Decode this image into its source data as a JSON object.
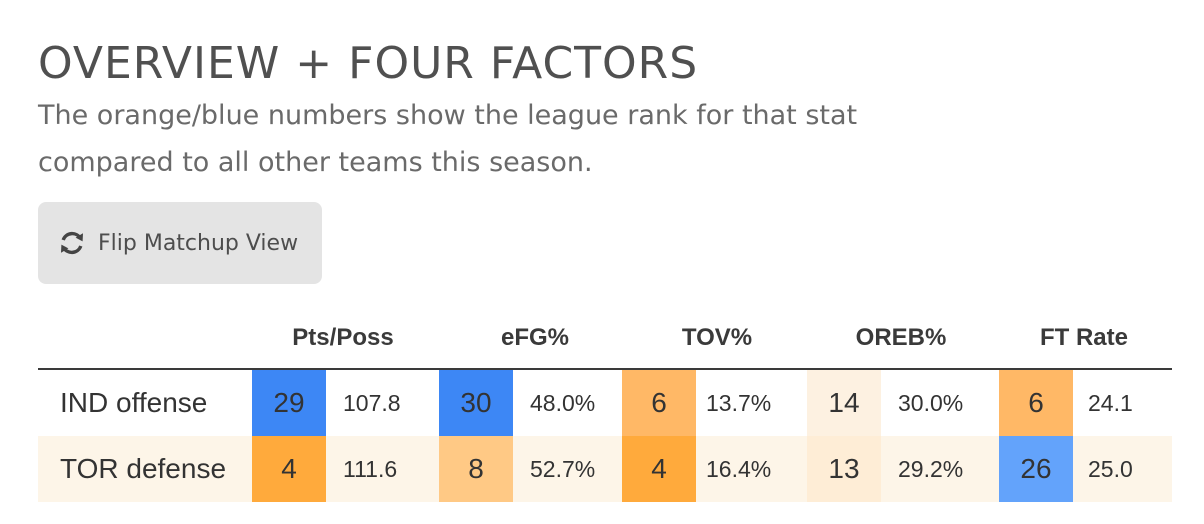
{
  "title": "OVERVIEW + FOUR FACTORS",
  "subtitle": "The orange/blue numbers show the league rank for that stat compared to all other teams this season.",
  "flip_button": {
    "label": "Flip Matchup View",
    "icon": "refresh-icon"
  },
  "columns": [
    "Pts/Poss",
    "eFG%",
    "TOV%",
    "OREB%",
    "FT Rate"
  ],
  "rows": [
    {
      "label": "IND offense",
      "cells": [
        {
          "rank": "29",
          "value": "107.8",
          "color": "#3d87f5"
        },
        {
          "rank": "30",
          "value": "48.0%",
          "color": "#3d87f5"
        },
        {
          "rank": "6",
          "value": "13.7%",
          "color": "#ffb866"
        },
        {
          "rank": "14",
          "value": "30.0%",
          "color": "#fdf1e1"
        },
        {
          "rank": "6",
          "value": "24.1",
          "color": "#ffb866"
        }
      ]
    },
    {
      "label": "TOR defense",
      "cells": [
        {
          "rank": "4",
          "value": "111.6",
          "color": "#ffaa3c"
        },
        {
          "rank": "8",
          "value": "52.7%",
          "color": "#ffc985"
        },
        {
          "rank": "4",
          "value": "16.4%",
          "color": "#ffaa3c"
        },
        {
          "rank": "13",
          "value": "29.2%",
          "color": "#feedd6"
        },
        {
          "rank": "26",
          "value": "25.0",
          "color": "#63a3fb"
        }
      ]
    }
  ]
}
